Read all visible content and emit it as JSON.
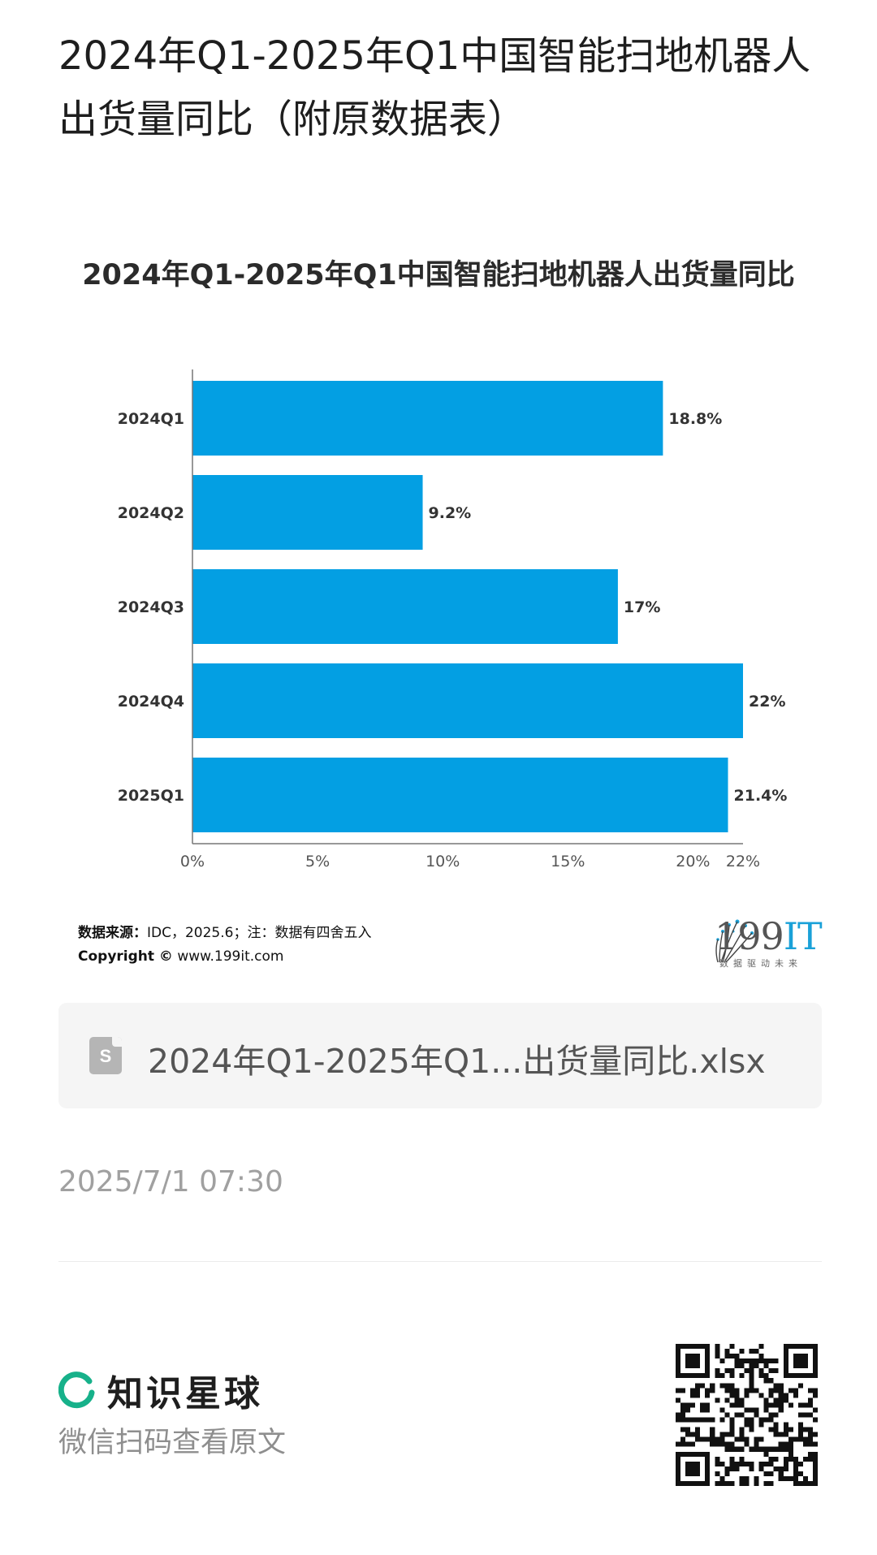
{
  "post": {
    "title": "2024年Q1-2025年Q1中国智能扫地机器人出货量同比（附原数据表）"
  },
  "chart_data": {
    "type": "bar",
    "orientation": "horizontal",
    "title": "2024年Q1-2025年Q1中国智能扫地机器人出货量同比",
    "categories": [
      "2024Q1",
      "2024Q2",
      "2024Q3",
      "2024Q4",
      "2025Q1"
    ],
    "values": [
      18.8,
      9.2,
      17,
      22,
      21.4
    ],
    "value_labels": [
      "18.8%",
      "9.2%",
      "17%",
      "22%",
      "21.4%"
    ],
    "x_ticks": [
      "0%",
      "5%",
      "10%",
      "15%",
      "20%",
      "22%"
    ],
    "x_tick_values": [
      0,
      5,
      10,
      15,
      20,
      22
    ],
    "xlim": [
      0,
      22
    ],
    "bar_color": "#039fe3",
    "grid": false,
    "legend": "none"
  },
  "source": {
    "label": "数据来源：",
    "text": "IDC，2025.6；注：数据有四舍五入",
    "copyright_label": "Copyright ©",
    "copyright_url": "www.199it.com"
  },
  "logo": {
    "text_main": "199",
    "text_it": "IT",
    "tagline": "数据驱动未来"
  },
  "attachment": {
    "icon": "spreadsheet-file-icon",
    "icon_letter": "S",
    "file_name": "2024年Q1-2025年Q1...出货量同比.xlsx"
  },
  "meta": {
    "timestamp": "2025/7/1 07:30"
  },
  "footer": {
    "brand_name": "知识星球",
    "brand_color": "#17b18a",
    "hint": "微信扫码查看原文",
    "qr_icon": "qr-code-icon"
  }
}
